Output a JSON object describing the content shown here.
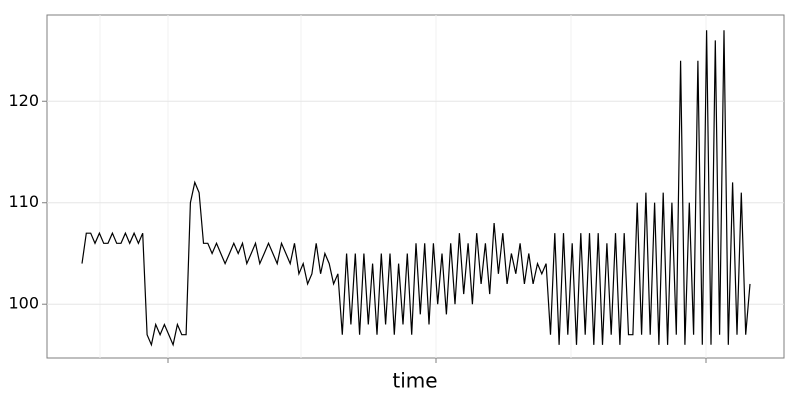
{
  "chart_data": {
    "type": "line",
    "xlabel": "time",
    "values": [
      104,
      107,
      107,
      106,
      107,
      106,
      106,
      107,
      106,
      106,
      107,
      106,
      107,
      106,
      107,
      97,
      96,
      98,
      97,
      98,
      97,
      96,
      98,
      97,
      97,
      110,
      112,
      111,
      106,
      106,
      105,
      106,
      105,
      104,
      105,
      106,
      105,
      106,
      104,
      105,
      106,
      104,
      105,
      106,
      105,
      104,
      106,
      105,
      104,
      106,
      103,
      104,
      102,
      103,
      106,
      103,
      105,
      104,
      102,
      103,
      97,
      105,
      98,
      105,
      97,
      105,
      98,
      104,
      97,
      105,
      98,
      105,
      97,
      104,
      98,
      105,
      97,
      106,
      99,
      106,
      98,
      106,
      100,
      105,
      99,
      106,
      100,
      107,
      101,
      106,
      100,
      107,
      102,
      106,
      101,
      108,
      103,
      107,
      102,
      105,
      103,
      106,
      102,
      105,
      102,
      104,
      103,
      104,
      97,
      107,
      96,
      107,
      97,
      106,
      96,
      107,
      97,
      107,
      96,
      107,
      96,
      106,
      97,
      107,
      96,
      107,
      97,
      97,
      110,
      97,
      111,
      97,
      110,
      96,
      111,
      96,
      110,
      97,
      124,
      96,
      110,
      97,
      124,
      96,
      127,
      96,
      126,
      97,
      127,
      96,
      112,
      97,
      111,
      97,
      102
    ],
    "color": "#000000",
    "ylim": [
      94.7,
      128.5
    ],
    "yticks": [
      100,
      110,
      120
    ],
    "grid": true
  }
}
